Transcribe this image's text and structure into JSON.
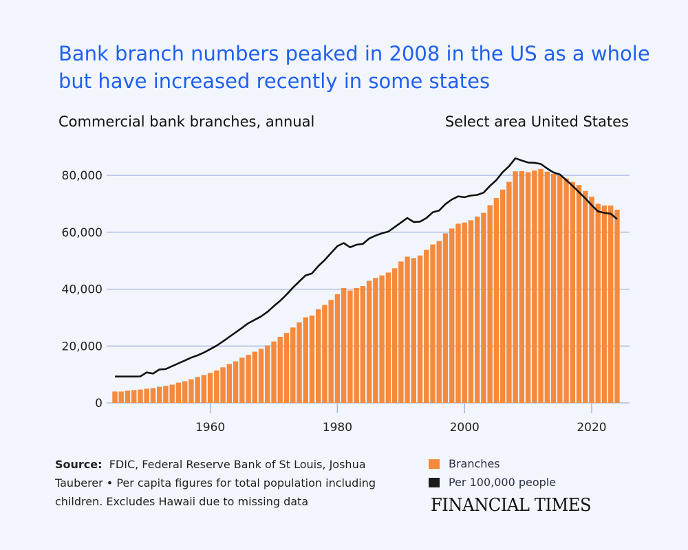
{
  "title": "Bank branch numbers peaked in 2008 in the US as a whole but have increased recently in some states",
  "subtitle_left": "Commercial bank branches, annual",
  "subtitle_right": "Select area United States",
  "source_label": "Source:",
  "source_text": "FDIC, Federal Reserve Bank of St Louis, Joshua Tauberer • Per capita figures for total population including children. Excludes Hawaii due to missing data",
  "brand": "FINANCIAL TIMES",
  "colors": {
    "title": "#1f5ff2",
    "bars": "#f58a3c",
    "line": "#111111",
    "grid": "#8d9fd3",
    "background": "#f2f6fc"
  },
  "chart_data": {
    "type": "bar",
    "title": "Commercial bank branches, annual",
    "xlabel": "",
    "ylabel": "",
    "ylim": [
      0,
      80000
    ],
    "yticks": [
      "0",
      "20,000",
      "40,000",
      "60,000",
      "80,000"
    ],
    "ytick_values": [
      0,
      20000,
      40000,
      60000,
      80000
    ],
    "xticks": [
      "1960",
      "1980",
      "2000",
      "2020"
    ],
    "xtick_values": [
      1960,
      1980,
      2000,
      2020
    ],
    "grid": true,
    "legend_placement": "bottom-right",
    "x_start": 1945,
    "series": [
      {
        "name": "Branches",
        "type": "bar",
        "values": [
          4000,
          4000,
          4300,
          4500,
          4700,
          5000,
          5200,
          5700,
          6000,
          6400,
          7100,
          7600,
          8300,
          9100,
          9800,
          10500,
          11400,
          12500,
          13700,
          14600,
          15900,
          16900,
          18000,
          19000,
          20200,
          21600,
          23200,
          24600,
          26500,
          28300,
          30100,
          30700,
          32900,
          34400,
          36200,
          38200,
          40400,
          39500,
          40400,
          41100,
          42900,
          43900,
          44800,
          45800,
          47300,
          49700,
          51400,
          50900,
          51800,
          53800,
          55700,
          56900,
          59600,
          61300,
          63000,
          63400,
          64200,
          65500,
          66800,
          69500,
          72000,
          75000,
          77700,
          81400,
          81500,
          81100,
          81700,
          82200,
          81300,
          80500,
          79900,
          78900,
          77700,
          76600,
          74500,
          72500,
          70000,
          69400,
          69400,
          67900
        ]
      },
      {
        "name": "Per 100,000 people",
        "type": "line",
        "note": "values shown rescaled to left axis",
        "values": [
          9250,
          9250,
          9250,
          9250,
          9300,
          10700,
          10300,
          11750,
          11900,
          12900,
          13900,
          14900,
          15900,
          16700,
          17700,
          18900,
          20100,
          21600,
          23200,
          24800,
          26400,
          28000,
          29200,
          30400,
          32000,
          34000,
          35900,
          38100,
          40500,
          42700,
          44800,
          45500,
          48100,
          50200,
          52700,
          55100,
          56200,
          54700,
          55600,
          55900,
          57800,
          58800,
          59600,
          60200,
          61800,
          63400,
          65000,
          63600,
          63700,
          65000,
          67000,
          67600,
          69900,
          71500,
          72600,
          72300,
          72900,
          73100,
          73900,
          76300,
          78300,
          81100,
          83200,
          86000,
          85200,
          84500,
          84400,
          84000,
          82400,
          81000,
          80300,
          78300,
          76300,
          74100,
          71900,
          69500,
          67300,
          66800,
          66500,
          64600
        ]
      }
    ]
  }
}
